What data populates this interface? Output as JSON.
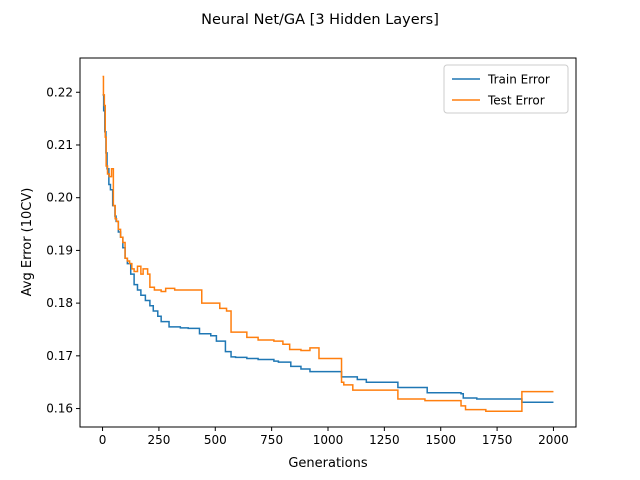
{
  "chart_data": {
    "type": "line",
    "title": "Neural Net/GA [3 Hidden Layers]",
    "xlabel": "Generations",
    "ylabel": "Avg Error (10CV)",
    "xlim": [
      -100,
      2100
    ],
    "ylim": [
      0.1565,
      0.2265
    ],
    "xticks": [
      0,
      250,
      500,
      750,
      1000,
      1250,
      1500,
      1750,
      2000
    ],
    "yticks": [
      0.16,
      0.17,
      0.18,
      0.19,
      0.2,
      0.21,
      0.22
    ],
    "ytick_labels": [
      "0.16",
      "0.17",
      "0.18",
      "0.19",
      "0.20",
      "0.21",
      "0.22"
    ],
    "grid": false,
    "legend": "upper-right",
    "series": [
      {
        "name": "Train Error",
        "color": "#1f77b4",
        "step": true,
        "x": [
          0,
          5,
          10,
          15,
          20,
          28,
          35,
          45,
          55,
          60,
          70,
          80,
          90,
          100,
          110,
          125,
          140,
          155,
          170,
          190,
          210,
          225,
          245,
          260,
          295,
          345,
          380,
          430,
          480,
          505,
          545,
          570,
          590,
          640,
          690,
          760,
          780,
          835,
          880,
          920,
          1060,
          1130,
          1170,
          1310,
          1440,
          1590,
          1600,
          1660,
          1860,
          2000
        ],
        "y": [
          0.2195,
          0.2165,
          0.2125,
          0.2085,
          0.2055,
          0.2025,
          0.2015,
          0.1985,
          0.1965,
          0.1955,
          0.1935,
          0.1925,
          0.1905,
          0.1885,
          0.1875,
          0.1855,
          0.1835,
          0.1825,
          0.1815,
          0.1805,
          0.1795,
          0.1785,
          0.1775,
          0.1765,
          0.1755,
          0.1753,
          0.1752,
          0.1742,
          0.1738,
          0.1728,
          0.1708,
          0.1698,
          0.1697,
          0.1695,
          0.1693,
          0.169,
          0.1688,
          0.168,
          0.1675,
          0.167,
          0.166,
          0.1655,
          0.165,
          0.164,
          0.163,
          0.1628,
          0.162,
          0.1618,
          0.1612,
          0.1612
        ]
      },
      {
        "name": "Test Error",
        "color": "#ff7f0e",
        "step": true,
        "x": [
          0,
          4,
          8,
          12,
          16,
          22,
          30,
          40,
          48,
          56,
          62,
          70,
          80,
          90,
          100,
          110,
          120,
          130,
          140,
          155,
          170,
          180,
          200,
          210,
          230,
          260,
          280,
          300,
          320,
          400,
          440,
          500,
          520,
          550,
          570,
          600,
          640,
          690,
          760,
          800,
          830,
          880,
          920,
          960,
          1040,
          1060,
          1070,
          1110,
          1160,
          1310,
          1430,
          1590,
          1610,
          1650,
          1700,
          1860,
          2000
        ],
        "y": [
          0.223,
          0.2195,
          0.2175,
          0.2115,
          0.206,
          0.2045,
          0.204,
          0.2055,
          0.1985,
          0.196,
          0.1955,
          0.194,
          0.1925,
          0.1915,
          0.1885,
          0.188,
          0.1875,
          0.1865,
          0.186,
          0.187,
          0.1855,
          0.1865,
          0.1855,
          0.183,
          0.1825,
          0.1822,
          0.1828,
          0.1828,
          0.1825,
          0.1825,
          0.18,
          0.18,
          0.179,
          0.1785,
          0.1745,
          0.1745,
          0.1735,
          0.173,
          0.1728,
          0.1722,
          0.1712,
          0.171,
          0.1715,
          0.1695,
          0.1695,
          0.165,
          0.1645,
          0.1635,
          0.1635,
          0.1618,
          0.1615,
          0.1605,
          0.1598,
          0.1598,
          0.1595,
          0.1632,
          0.1632
        ]
      }
    ]
  }
}
